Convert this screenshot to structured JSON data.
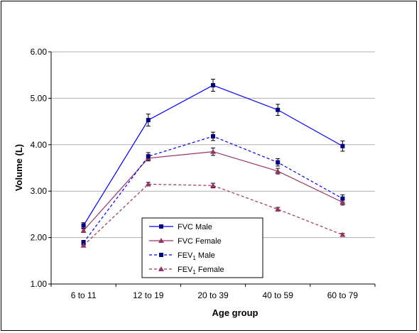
{
  "chart_data": {
    "type": "line",
    "title": "",
    "xlabel": "Age group",
    "ylabel": "Volume (L)",
    "categories": [
      "6 to 11",
      "12 to 19",
      "20 to 39",
      "40 to 59",
      "60 to 79"
    ],
    "ylim": [
      1.0,
      6.0
    ],
    "yticks": [
      "1.00",
      "2.00",
      "3.00",
      "4.00",
      "5.00",
      "6.00"
    ],
    "grid": true,
    "legend_position": "bottom-center",
    "series": [
      {
        "name": "FVC Male",
        "legend_base": "FVC Male",
        "legend_sub": "",
        "legend_rest": "",
        "values": [
          2.26,
          4.53,
          5.28,
          4.75,
          3.97
        ],
        "errors": [
          0.06,
          0.13,
          0.13,
          0.12,
          0.11
        ],
        "color": "#0000ff",
        "marker_color": "#000080",
        "marker": "square",
        "dash": "solid"
      },
      {
        "name": "FVC Female",
        "legend_base": "FVC Female",
        "legend_sub": "",
        "legend_rest": "",
        "values": [
          2.15,
          3.71,
          3.85,
          3.43,
          2.76
        ],
        "errors": [
          0.04,
          0.06,
          0.08,
          0.06,
          0.06
        ],
        "color": "#993366",
        "marker_color": "#993366",
        "marker": "triangle",
        "dash": "solid"
      },
      {
        "name": "FEV1 Male",
        "legend_base": "FEV",
        "legend_sub": "1",
        "legend_rest": " Male",
        "values": [
          1.89,
          3.75,
          4.18,
          3.62,
          2.84
        ],
        "errors": [
          0.05,
          0.08,
          0.09,
          0.08,
          0.08
        ],
        "color": "#0000ff",
        "marker_color": "#000080",
        "marker": "square",
        "dash": "dashed"
      },
      {
        "name": "FEV1 Female",
        "legend_base": "FEV",
        "legend_sub": "1",
        "legend_rest": " Female",
        "values": [
          1.83,
          3.15,
          3.12,
          2.61,
          2.06
        ],
        "errors": [
          0.03,
          0.04,
          0.05,
          0.04,
          0.03
        ],
        "color": "#993366",
        "marker_color": "#993366",
        "marker": "triangle",
        "dash": "dashed"
      }
    ]
  }
}
